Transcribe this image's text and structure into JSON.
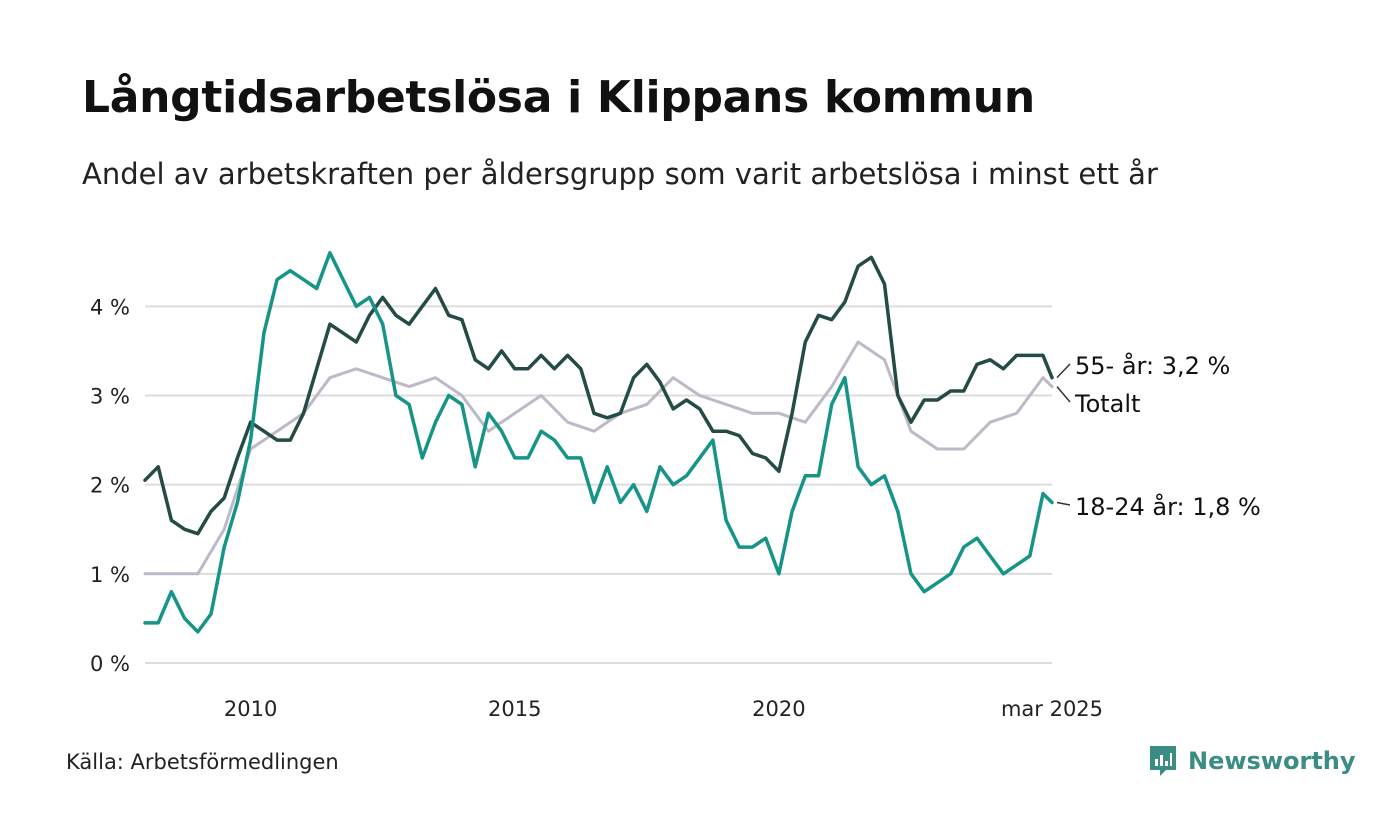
{
  "header": {
    "title": "Långtidsarbetslösa i Klippans kommun",
    "subtitle": "Andel av arbetskraften per åldersgrupp som varit arbetslösa i minst ett år"
  },
  "footer": {
    "source": "Källa: Arbetsförmedlingen",
    "brand": "Newsworthy",
    "brand_icon": "newsworthy-logo-icon",
    "brand_color": "#3a8c84"
  },
  "chart_data": {
    "type": "line",
    "title": "Långtidsarbetslösa i Klippans kommun",
    "subtitle": "Andel av arbetskraften per åldersgrupp som varit arbetslösa i minst ett år",
    "xlabel": "",
    "ylabel": "",
    "xlim": [
      2008.0,
      2025.17
    ],
    "ylim": [
      0,
      4.8
    ],
    "y_ticks": [
      0,
      1,
      2,
      3,
      4
    ],
    "y_tick_labels": [
      "0 %",
      "1 %",
      "2 %",
      "3 %",
      "4 %"
    ],
    "x_ticks": [
      2010,
      2015,
      2020,
      2025.17
    ],
    "x_tick_labels": [
      "2010",
      "2015",
      "2020",
      "mar 2025"
    ],
    "grid": "horizontal",
    "legend": "end-of-line labels",
    "series": [
      {
        "name": "Totalt",
        "label": "Totalt",
        "color": "#bdb9c8",
        "x": [
          2008.0,
          2008.5,
          2009.0,
          2009.5,
          2010.0,
          2010.5,
          2011.0,
          2011.5,
          2012.0,
          2012.5,
          2013.0,
          2013.5,
          2014.0,
          2014.5,
          2015.0,
          2015.5,
          2016.0,
          2016.5,
          2017.0,
          2017.5,
          2018.0,
          2018.5,
          2019.0,
          2019.5,
          2020.0,
          2020.5,
          2021.0,
          2021.5,
          2022.0,
          2022.5,
          2023.0,
          2023.5,
          2024.0,
          2024.5,
          2025.0,
          2025.17
        ],
        "values": [
          1.0,
          1.0,
          1.0,
          1.5,
          2.4,
          2.6,
          2.8,
          3.2,
          3.3,
          3.2,
          3.1,
          3.2,
          3.0,
          2.6,
          2.8,
          3.0,
          2.7,
          2.6,
          2.8,
          2.9,
          3.2,
          3.0,
          2.9,
          2.8,
          2.8,
          2.7,
          3.1,
          3.6,
          3.4,
          2.6,
          2.4,
          2.4,
          2.7,
          2.8,
          3.2,
          3.1
        ]
      },
      {
        "name": "55- år",
        "label": "55- år: 3,2 %",
        "color": "#244b45",
        "x": [
          2008.0,
          2008.25,
          2008.5,
          2008.75,
          2009.0,
          2009.25,
          2009.5,
          2009.75,
          2010.0,
          2010.25,
          2010.5,
          2010.75,
          2011.0,
          2011.25,
          2011.5,
          2011.75,
          2012.0,
          2012.25,
          2012.5,
          2012.75,
          2013.0,
          2013.25,
          2013.5,
          2013.75,
          2014.0,
          2014.25,
          2014.5,
          2014.75,
          2015.0,
          2015.25,
          2015.5,
          2015.75,
          2016.0,
          2016.25,
          2016.5,
          2016.75,
          2017.0,
          2017.25,
          2017.5,
          2017.75,
          2018.0,
          2018.25,
          2018.5,
          2018.75,
          2019.0,
          2019.25,
          2019.5,
          2019.75,
          2020.0,
          2020.25,
          2020.5,
          2020.75,
          2021.0,
          2021.25,
          2021.5,
          2021.75,
          2022.0,
          2022.25,
          2022.5,
          2022.75,
          2023.0,
          2023.25,
          2023.5,
          2023.75,
          2024.0,
          2024.25,
          2024.5,
          2024.75,
          2025.0,
          2025.17
        ],
        "values": [
          2.05,
          2.2,
          1.6,
          1.5,
          1.45,
          1.7,
          1.85,
          2.3,
          2.7,
          2.6,
          2.5,
          2.5,
          2.8,
          3.3,
          3.8,
          3.7,
          3.6,
          3.9,
          4.1,
          3.9,
          3.8,
          4.0,
          4.2,
          3.9,
          3.85,
          3.4,
          3.3,
          3.5,
          3.3,
          3.3,
          3.45,
          3.3,
          3.45,
          3.3,
          2.8,
          2.75,
          2.8,
          3.2,
          3.35,
          3.15,
          2.85,
          2.95,
          2.85,
          2.6,
          2.6,
          2.55,
          2.35,
          2.3,
          2.15,
          2.8,
          3.6,
          3.9,
          3.85,
          4.05,
          4.45,
          4.55,
          4.25,
          3.0,
          2.7,
          2.95,
          2.95,
          3.05,
          3.05,
          3.35,
          3.4,
          3.3,
          3.45,
          3.45,
          3.45,
          3.2
        ]
      },
      {
        "name": "18-24 år",
        "label": "18-24 år: 1,8 %",
        "color": "#169487",
        "x": [
          2008.0,
          2008.25,
          2008.5,
          2008.75,
          2009.0,
          2009.25,
          2009.5,
          2009.75,
          2010.0,
          2010.25,
          2010.5,
          2010.75,
          2011.0,
          2011.25,
          2011.5,
          2011.75,
          2012.0,
          2012.25,
          2012.5,
          2012.75,
          2013.0,
          2013.25,
          2013.5,
          2013.75,
          2014.0,
          2014.25,
          2014.5,
          2014.75,
          2015.0,
          2015.25,
          2015.5,
          2015.75,
          2016.0,
          2016.25,
          2016.5,
          2016.75,
          2017.0,
          2017.25,
          2017.5,
          2017.75,
          2018.0,
          2018.25,
          2018.5,
          2018.75,
          2019.0,
          2019.25,
          2019.5,
          2019.75,
          2020.0,
          2020.25,
          2020.5,
          2020.75,
          2021.0,
          2021.25,
          2021.5,
          2021.75,
          2022.0,
          2022.25,
          2022.5,
          2022.75,
          2023.0,
          2023.25,
          2023.5,
          2023.75,
          2024.0,
          2024.25,
          2024.5,
          2024.75,
          2025.0,
          2025.17
        ],
        "values": [
          0.45,
          0.45,
          0.8,
          0.5,
          0.35,
          0.55,
          1.3,
          1.8,
          2.5,
          3.7,
          4.3,
          4.4,
          4.3,
          4.2,
          4.6,
          4.3,
          4.0,
          4.1,
          3.8,
          3.0,
          2.9,
          2.3,
          2.7,
          3.0,
          2.9,
          2.2,
          2.8,
          2.6,
          2.3,
          2.3,
          2.6,
          2.5,
          2.3,
          2.3,
          1.8,
          2.2,
          1.8,
          2.0,
          1.7,
          2.2,
          2.0,
          2.1,
          2.3,
          2.5,
          1.6,
          1.3,
          1.3,
          1.4,
          1.0,
          1.7,
          2.1,
          2.1,
          2.9,
          3.2,
          2.2,
          2.0,
          2.1,
          1.7,
          1.0,
          0.8,
          0.9,
          1.0,
          1.3,
          1.4,
          1.2,
          1.0,
          1.1,
          1.2,
          1.9,
          1.8
        ]
      }
    ]
  }
}
